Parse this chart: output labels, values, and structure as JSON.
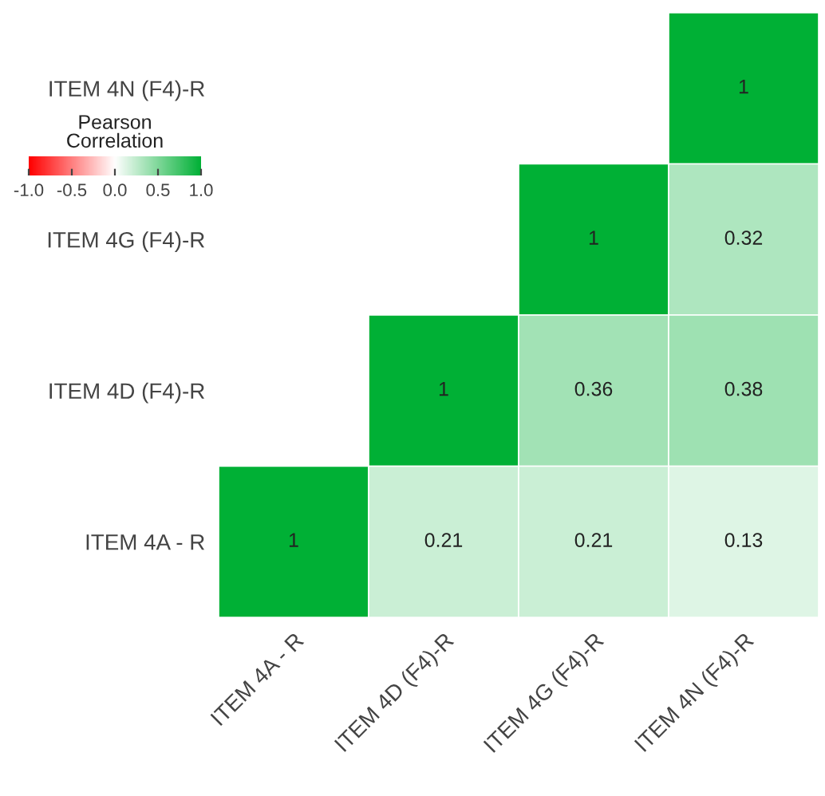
{
  "chart_data": {
    "type": "heatmap",
    "categories": [
      "ITEM 4A - R",
      "ITEM 4D (F4)-R",
      "ITEM 4G (F4)-R",
      "ITEM 4N (F4)-R"
    ],
    "y_categories": [
      "ITEM 4N (F4)-R",
      "ITEM 4G (F4)-R",
      "ITEM 4D (F4)-R",
      "ITEM 4A - R"
    ],
    "cells": [
      [
        null,
        null,
        null,
        1
      ],
      [
        null,
        null,
        1,
        0.32
      ],
      [
        null,
        1,
        0.36,
        0.38
      ],
      [
        1,
        0.21,
        0.21,
        0.13
      ]
    ],
    "colors": [
      "#ff0000",
      "#ffffff",
      "#00b035"
    ],
    "clabel": "Pearson\nCorrelation",
    "clim": [
      -1.0,
      1.0
    ],
    "cticks": [
      {
        "value": -1,
        "label": "-1.0"
      },
      {
        "value": -0.5,
        "label": "-0.5"
      },
      {
        "value": 0,
        "label": "0.0"
      },
      {
        "value": 0.5,
        "label": "0.5"
      },
      {
        "value": 1,
        "label": "1.0"
      }
    ],
    "data_labels": true
  }
}
